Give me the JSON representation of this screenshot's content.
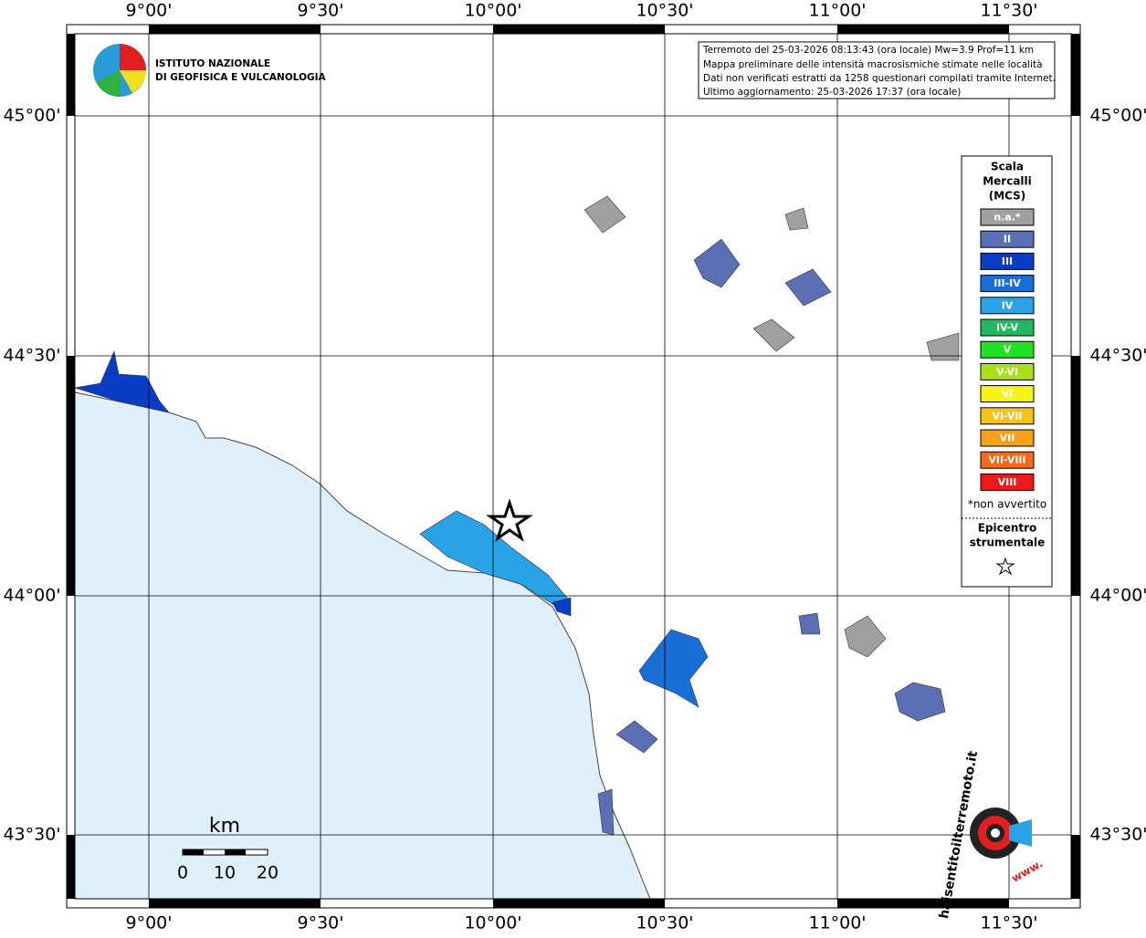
{
  "axes": {
    "top": [
      "9°00'",
      "9°30'",
      "10°00'",
      "10°30'",
      "11°00'",
      "11°30'"
    ],
    "bottom": [
      "9°00'",
      "9°30'",
      "10°00'",
      "10°30'",
      "11°00'",
      "11°30'"
    ],
    "left": [
      "45°00'",
      "44°30'",
      "44°00'",
      "43°30'"
    ],
    "right": [
      "45°00'",
      "44°30'",
      "44°00'",
      "43°30'"
    ]
  },
  "logo": {
    "line1": "ISTITUTO NAZIONALE",
    "line2": "DI GEOFISICA E VULCANOLOGIA"
  },
  "info": [
    "Terremoto del 25-03-2026 08:13:43 (ora locale) Mw=3.9 Prof=11 km",
    "Mappa preliminare delle intensità macrosismiche stimate nelle località",
    "Dati non verificati estratti da 1258 questionari compilati tramite Internet.",
    "Ultimo aggiornamento: 25-03-2026 17:37 (ora locale)"
  ],
  "legend": {
    "title": [
      "Scala",
      "Mercalli",
      "(MCS)"
    ],
    "items": [
      {
        "label": "n.a.*",
        "color": "#a0a0a0"
      },
      {
        "label": "II",
        "color": "#5b6fb5"
      },
      {
        "label": "III",
        "color": "#0b3cc4"
      },
      {
        "label": "III-IV",
        "color": "#1a6fd6"
      },
      {
        "label": "IV",
        "color": "#2aa3e6"
      },
      {
        "label": "IV-V",
        "color": "#20b860"
      },
      {
        "label": "V",
        "color": "#22e022"
      },
      {
        "label": "V-VI",
        "color": "#a8e01a"
      },
      {
        "label": "VI",
        "color": "#f5f51a"
      },
      {
        "label": "VI-VII",
        "color": "#f5c21a"
      },
      {
        "label": "VII",
        "color": "#f5a01a"
      },
      {
        "label": "VII-VIII",
        "color": "#f56a1a"
      },
      {
        "label": "VIII",
        "color": "#ec1a1a"
      }
    ],
    "note": "*non avvertito",
    "epicenter": [
      "Epicentro",
      "strumentale"
    ]
  },
  "scale": {
    "unit": "km",
    "labels": [
      "0",
      "10",
      "20"
    ]
  },
  "badge": {
    "text": "haisentitoilterremoto.it",
    "www": "www."
  }
}
